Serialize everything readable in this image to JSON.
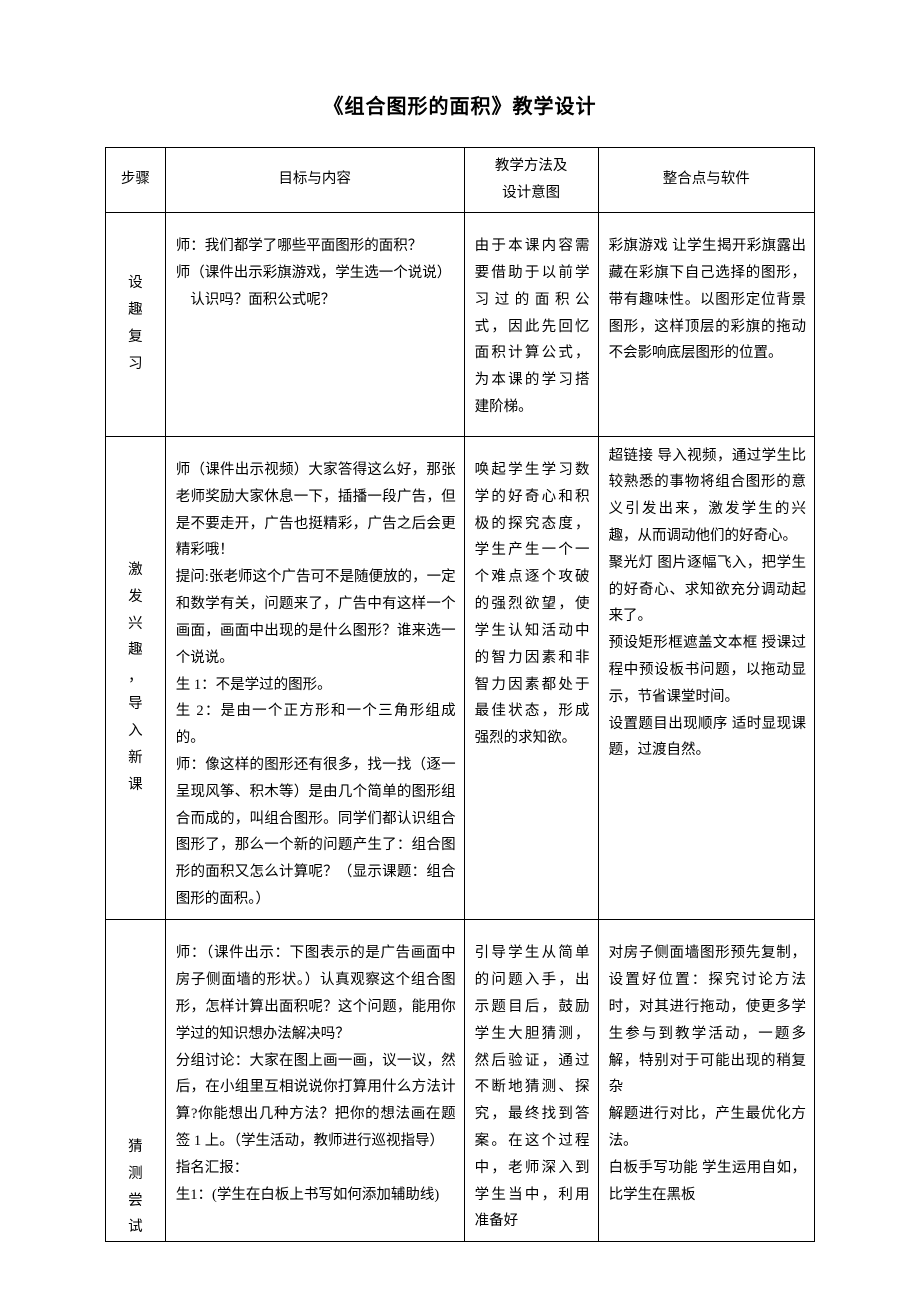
{
  "title": "《组合图形的面积》教学设计",
  "headers": {
    "c1": "步骤",
    "c2": "目标与内容",
    "c3": "教学方法及\n设计意图",
    "c4": "整合点与软件"
  },
  "rows": [
    {
      "step": "设\n趣\n复\n习",
      "content": "师：我们都学了哪些平面图形的面积？\n师（课件出示彩旗游戏，学生选一个说说）\n　认识吗？面积公式呢？",
      "rationale": "由于本课内容需要借助于以前学习过的面积公式，因此先回忆面积计算公式，为本课的学习搭建阶梯。",
      "integration": "彩旗游戏 让学生揭开彩旗露出藏在彩旗下自己选择的图形，带有趣味性。以图形定位背景图形，这样顶层的彩旗的拖动不会影响底层图形的位置。"
    },
    {
      "step": "激\n发\n兴\n趣\n，\n导\n入\n新\n课",
      "content": "师（课件出示视频）大家答得这么好，那张老师奖励大家休息一下，插播一段广告，但是不要走开，广告也挺精彩，广告之后会更精彩哦！\n提问:张老师这个广告可不是随便放的，一定和数学有关，问题来了，广告中有这样一个画面，画面中出现的是什么图形？谁来选一个说说。\n生 1：不是学过的图形。\n生 2：是由一个正方形和一个三角形组成的。\n师：像这样的图形还有很多，找一找（逐一呈现风筝、积木等）是由几个简单的图形组合而成的，叫组合图形。同学们都认识组合图形了，那么一个新的问题产生了：组合图形的面积又怎么计算呢？（显示课题：组合图形的面积。）",
      "rationale": "唤起学生学习数学的好奇心和积极的探究态度，学生产生一个一个难点逐个攻破的强烈欲望，使学生认知活动中的智力因素和非智力因素都处于最佳状态，形成强烈的求知欲。",
      "integration": "超链接 导入视频，通过学生比较熟悉的事物将组合图形的意义引发出来，激发学生的兴趣，从而调动他们的好奇心。\n聚光灯 图片逐幅飞入，把学生的好奇心、求知欲充分调动起来了。\n预设矩形框遮盖文本框 授课过程中预设板书问题，以拖动显示，节省课堂时间。\n设置题目出现顺序 适时显现课题，过渡自然。"
    },
    {
      "step": "猜\n测\n尝\n试",
      "content": "师：（课件出示：下图表示的是广告画面中房子侧面墙的形状。）认真观察这个组合图形，怎样计算出面积呢？这个问题，能用你学过的知识想办法解决吗？\n分组讨论：大家在图上画一画，议一议，然后，在小组里互相说说你打算用什么方法计算?你能想出几种方法？把你的想法画在题签 1 上。（学生活动，教师进行巡视指导）\n指名汇报：\n生1：(学生在白板上书写如何添加辅助线)",
      "rationale": "引导学生从简单的问题入手，出示题目后，鼓励学生大胆猜测，然后验证，通过不断地猜测、探究，最终找到答案。在这个过程中，老师深入到学生当中，利用准备好",
      "integration": "对房子侧面墙图形预先复制，设置好位置：探究讨论方法时，对其进行拖动，使更多学生参与到教学活动，一题多解，特别对于可能出现的稍复杂\n解题进行对比，产生最优化方法。\n白板手写功能 学生运用自如，比学生在黑板",
      "stepAlignBottom": true
    }
  ]
}
